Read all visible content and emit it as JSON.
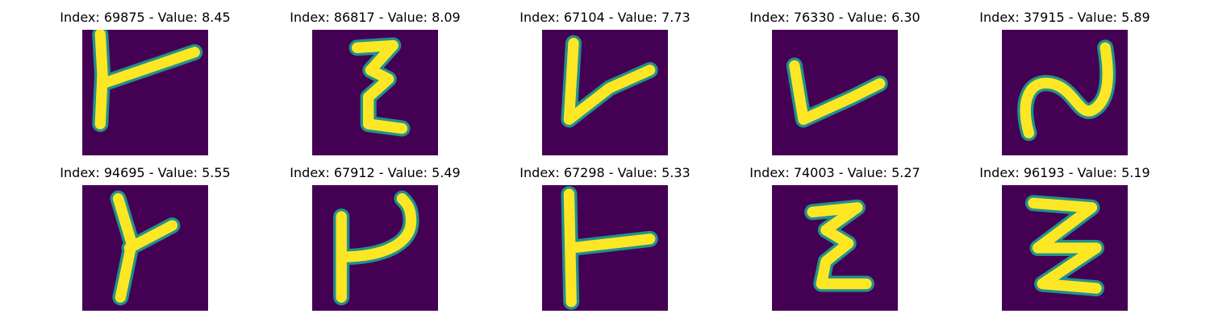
{
  "colors": {
    "background": "#440154",
    "ink": "#fde725",
    "edge": "#21918c"
  },
  "panels": [
    {
      "title": "Index: 69875 - Value: 8.45",
      "glyph": "y-shape"
    },
    {
      "title": "Index: 86817 - Value: 8.09",
      "glyph": "epsilon-shape"
    },
    {
      "title": "Index: 67104 - Value: 7.73",
      "glyph": "v-shape"
    },
    {
      "title": "Index: 76330 - Value: 6.30",
      "glyph": "v-shape-wide"
    },
    {
      "title": "Index: 37915 - Value: 5.89",
      "glyph": "s-curve"
    },
    {
      "title": "Index: 94695 - Value: 5.55",
      "glyph": "y-shape-narrow"
    },
    {
      "title": "Index: 67912 - Value: 5.49",
      "glyph": "psi-shape"
    },
    {
      "title": "Index: 67298 - Value: 5.33",
      "glyph": "t-shape"
    },
    {
      "title": "Index: 74003 - Value: 5.27",
      "glyph": "epsilon-shape"
    },
    {
      "title": "Index: 96193 - Value: 5.19",
      "glyph": "zigzag-shape"
    }
  ]
}
